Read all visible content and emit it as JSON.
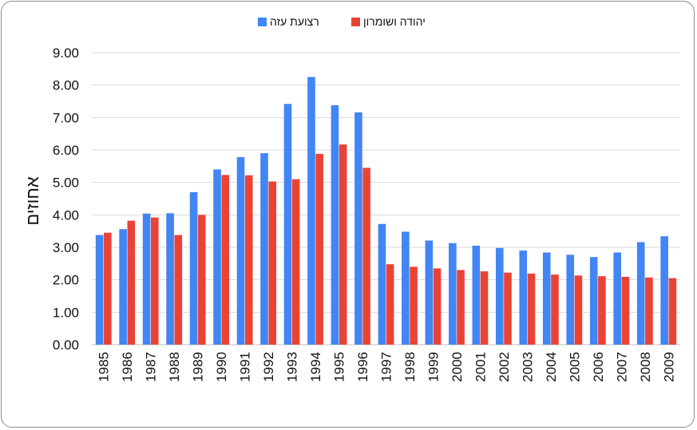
{
  "chart_data": {
    "type": "bar",
    "ylabel": "אחוזים",
    "ylim": [
      0,
      9
    ],
    "yticks": [
      "0.00",
      "1.00",
      "2.00",
      "3.00",
      "4.00",
      "5.00",
      "6.00",
      "7.00",
      "8.00",
      "9.00"
    ],
    "grid": true,
    "legend_position": "top-center",
    "categories": [
      "1985",
      "1986",
      "1987",
      "1988",
      "1989",
      "1990",
      "1991",
      "1992",
      "1993",
      "1994",
      "1995",
      "1996",
      "1997",
      "1998",
      "1999",
      "2000",
      "2001",
      "2002",
      "2003",
      "2004",
      "2005",
      "2006",
      "2007",
      "2008",
      "2009"
    ],
    "series": [
      {
        "name": "רצועת עזה",
        "color": "#4285f4",
        "values": [
          3.38,
          3.56,
          4.04,
          4.05,
          4.7,
          5.4,
          5.78,
          5.9,
          7.42,
          8.25,
          7.38,
          7.16,
          3.72,
          3.48,
          3.21,
          3.13,
          3.05,
          2.98,
          2.9,
          2.84,
          2.77,
          2.7,
          2.84,
          3.16,
          3.34
        ]
      },
      {
        "name": "יהודה ושומרון",
        "color": "#ea4335",
        "values": [
          3.45,
          3.82,
          3.92,
          3.38,
          4.0,
          5.23,
          5.22,
          5.03,
          5.1,
          5.88,
          6.17,
          5.45,
          2.48,
          2.4,
          2.35,
          2.3,
          2.26,
          2.22,
          2.19,
          2.16,
          2.13,
          2.11,
          2.09,
          2.07,
          2.05
        ]
      }
    ]
  }
}
